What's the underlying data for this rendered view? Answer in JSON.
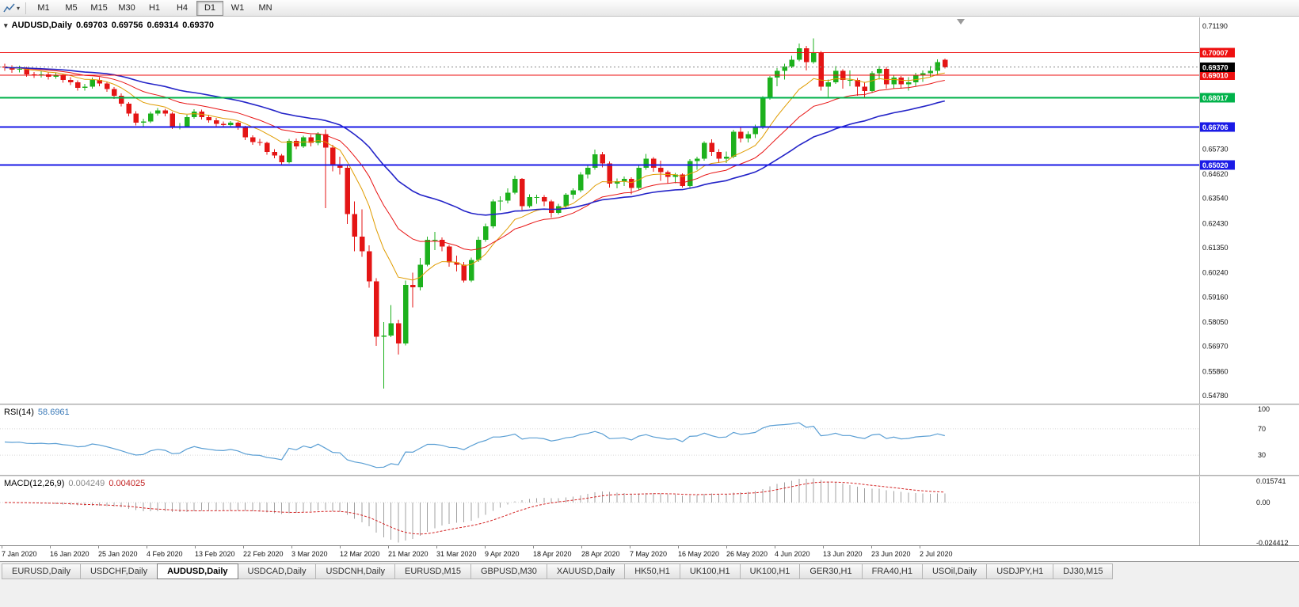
{
  "toolbar": {
    "timeframes": [
      {
        "label": "M1"
      },
      {
        "label": "M5"
      },
      {
        "label": "M15"
      },
      {
        "label": "M30"
      },
      {
        "label": "H1"
      },
      {
        "label": "H4"
      },
      {
        "label": "D1",
        "active": true
      },
      {
        "label": "W1"
      },
      {
        "label": "MN"
      }
    ]
  },
  "chart_header": {
    "collapse_icon": "▾",
    "symbol": "AUDUSD,Daily",
    "open": "0.69703",
    "high": "0.69756",
    "low": "0.69314",
    "close": "0.69370"
  },
  "colors": {
    "bull": "#1db11d",
    "bear": "#e41515",
    "ma_fast": "#e09c00",
    "ma_mid": "#e81414",
    "ma_slow": "#2424c8",
    "rsi_line": "#5b9fd4",
    "macd_hist": "#a0a0a0",
    "macd_signal": "#d42424",
    "hline_red": "#ee0f0f",
    "hline_green": "#00b24a",
    "hline_blue": "#1a1ae6",
    "current_tag": "#000000"
  },
  "main_axis_labels": [
    "0.71190",
    "0.65730",
    "0.64620",
    "0.63540",
    "0.62430",
    "0.61350",
    "0.60240",
    "0.59160",
    "0.58050",
    "0.56970",
    "0.55860",
    "0.54780"
  ],
  "hlines": [
    {
      "value": 0.70007,
      "label": "0.70007",
      "color": "#ee0f0f",
      "width": 1
    },
    {
      "value": 0.6901,
      "label": "0.69010",
      "color": "#ee0f0f",
      "width": 1
    },
    {
      "value": 0.68017,
      "label": "0.68017",
      "color": "#00b24a",
      "width": 2
    },
    {
      "value": 0.66706,
      "label": "0.66706",
      "color": "#1a1ae6",
      "width": 2
    },
    {
      "value": 0.6502,
      "label": "0.65020",
      "color": "#1a1ae6",
      "width": 2
    }
  ],
  "current_price": {
    "value": 0.6937,
    "label": "0.69370"
  },
  "rsi_panel": {
    "label": "RSI(14)",
    "value": "58.6961",
    "levels": [
      "100",
      "70",
      "30"
    ]
  },
  "macd_panel": {
    "label": "MACD(12,26,9)",
    "value1": "0.004249",
    "value2": "0.004025",
    "axis_labels": [
      "0.015741",
      "0.00",
      "-0.024412"
    ]
  },
  "date_labels": [
    "7 Jan 2020",
    "16 Jan 2020",
    "25 Jan 2020",
    "4 Feb 2020",
    "13 Feb 2020",
    "22 Feb 2020",
    "3 Mar 2020",
    "12 Mar 2020",
    "21 Mar 2020",
    "31 Mar 2020",
    "9 Apr 2020",
    "18 Apr 2020",
    "28 Apr 2020",
    "7 May 2020",
    "16 May 2020",
    "26 May 2020",
    "4 Jun 2020",
    "13 Jun 2020",
    "23 Jun 2020",
    "2 Jul 2020"
  ],
  "tabbar": {
    "tabs": [
      {
        "label": "EURUSD,Daily"
      },
      {
        "label": "USDCHF,Daily"
      },
      {
        "label": "AUDUSD,Daily",
        "active": true
      },
      {
        "label": "USDCAD,Daily"
      },
      {
        "label": "USDCNH,Daily"
      },
      {
        "label": "EURUSD,M15"
      },
      {
        "label": "GBPUSD,M30"
      },
      {
        "label": "XAUUSD,Daily"
      },
      {
        "label": "HK50,H1"
      },
      {
        "label": "UK100,H1"
      },
      {
        "label": "UK100,H1"
      },
      {
        "label": "GER30,H1"
      },
      {
        "label": "FRA40,H1"
      },
      {
        "label": "USOil,Daily"
      },
      {
        "label": "USDJPY,H1"
      },
      {
        "label": "DJ30,M15"
      }
    ]
  },
  "chart_data": {
    "type": "candlestick",
    "symbol": "AUDUSD",
    "timeframe": "Daily",
    "title": "AUDUSD,Daily 0.69703 0.69756 0.69314 0.69370",
    "y_range": [
      0.5478,
      0.7119
    ],
    "ohlc_display": [
      0.69703,
      0.69756,
      0.69314,
      0.6937
    ],
    "moving_average_periods": [
      10,
      20,
      40
    ],
    "horizontal_levels": [
      0.70007,
      0.6901,
      0.68017,
      0.66706,
      0.6502
    ],
    "indicators": [
      {
        "name": "RSI(14)",
        "current": 58.6961,
        "levels": [
          100,
          70,
          30
        ]
      },
      {
        "name": "MACD(12,26,9)",
        "current": [
          0.004249,
          0.004025
        ],
        "axis": [
          0.015741,
          0.0,
          -0.024412
        ]
      }
    ],
    "candles": [
      [
        0.694,
        0.6952,
        0.692,
        0.6935
      ],
      [
        0.6935,
        0.6945,
        0.6912,
        0.6925
      ],
      [
        0.6925,
        0.6944,
        0.6913,
        0.693
      ],
      [
        0.693,
        0.6938,
        0.6894,
        0.6905
      ],
      [
        0.6905,
        0.6916,
        0.6888,
        0.69
      ],
      [
        0.69,
        0.6918,
        0.689,
        0.6905
      ],
      [
        0.6905,
        0.6913,
        0.6882,
        0.6895
      ],
      [
        0.6895,
        0.6912,
        0.6885,
        0.69
      ],
      [
        0.69,
        0.6908,
        0.6868,
        0.688
      ],
      [
        0.688,
        0.6892,
        0.6858,
        0.687
      ],
      [
        0.687,
        0.6878,
        0.6832,
        0.6845
      ],
      [
        0.6845,
        0.6862,
        0.6833,
        0.685
      ],
      [
        0.685,
        0.689,
        0.6842,
        0.688
      ],
      [
        0.688,
        0.6892,
        0.6852,
        0.6865
      ],
      [
        0.6865,
        0.6872,
        0.6828,
        0.684
      ],
      [
        0.684,
        0.6848,
        0.6796,
        0.681
      ],
      [
        0.681,
        0.682,
        0.6762,
        0.6775
      ],
      [
        0.6775,
        0.6782,
        0.6718,
        0.673
      ],
      [
        0.673,
        0.6742,
        0.6678,
        0.669
      ],
      [
        0.669,
        0.6708,
        0.667,
        0.6695
      ],
      [
        0.6695,
        0.674,
        0.6688,
        0.673
      ],
      [
        0.673,
        0.6756,
        0.6722,
        0.6745
      ],
      [
        0.6745,
        0.6752,
        0.6718,
        0.673
      ],
      [
        0.673,
        0.6738,
        0.6662,
        0.667
      ],
      [
        0.667,
        0.6688,
        0.666,
        0.6675
      ],
      [
        0.6675,
        0.6725,
        0.6668,
        0.6715
      ],
      [
        0.6715,
        0.675,
        0.6708,
        0.674
      ],
      [
        0.674,
        0.6748,
        0.6705,
        0.6715
      ],
      [
        0.6715,
        0.6726,
        0.669,
        0.67
      ],
      [
        0.67,
        0.6712,
        0.6675,
        0.6685
      ],
      [
        0.6685,
        0.6695,
        0.667,
        0.668
      ],
      [
        0.668,
        0.6698,
        0.6672,
        0.669
      ],
      [
        0.669,
        0.6696,
        0.6658,
        0.667
      ],
      [
        0.667,
        0.6676,
        0.6613,
        0.6625
      ],
      [
        0.6625,
        0.6634,
        0.6592,
        0.6605
      ],
      [
        0.6605,
        0.6618,
        0.6588,
        0.66
      ],
      [
        0.66,
        0.6606,
        0.6548,
        0.656
      ],
      [
        0.656,
        0.6572,
        0.6533,
        0.6545
      ],
      [
        0.6545,
        0.6552,
        0.6503,
        0.6515
      ],
      [
        0.6515,
        0.6618,
        0.651,
        0.661
      ],
      [
        0.661,
        0.662,
        0.6572,
        0.6585
      ],
      [
        0.6585,
        0.6632,
        0.6578,
        0.6625
      ],
      [
        0.6625,
        0.6638,
        0.6585,
        0.66
      ],
      [
        0.66,
        0.6648,
        0.659,
        0.664
      ],
      [
        0.664,
        0.666,
        0.631,
        0.658
      ],
      [
        0.658,
        0.6592,
        0.6475,
        0.65
      ],
      [
        0.65,
        0.654,
        0.646,
        0.649
      ],
      [
        0.649,
        0.6498,
        0.624,
        0.6285
      ],
      [
        0.6285,
        0.634,
        0.612,
        0.6185
      ],
      [
        0.6185,
        0.6305,
        0.6095,
        0.612
      ],
      [
        0.612,
        0.6145,
        0.5958,
        0.5985
      ],
      [
        0.5985,
        0.6,
        0.57,
        0.574
      ],
      [
        0.574,
        0.5805,
        0.551,
        0.5745
      ],
      [
        0.5745,
        0.588,
        0.5738,
        0.58
      ],
      [
        0.58,
        0.5815,
        0.566,
        0.571
      ],
      [
        0.571,
        0.599,
        0.5702,
        0.597
      ],
      [
        0.597,
        0.6025,
        0.587,
        0.596
      ],
      [
        0.596,
        0.609,
        0.5945,
        0.606
      ],
      [
        0.606,
        0.6185,
        0.6052,
        0.617
      ],
      [
        0.617,
        0.6205,
        0.6125,
        0.617
      ],
      [
        0.617,
        0.618,
        0.612,
        0.614
      ],
      [
        0.614,
        0.6148,
        0.605,
        0.607
      ],
      [
        0.607,
        0.61,
        0.603,
        0.606
      ],
      [
        0.606,
        0.6072,
        0.598,
        0.599
      ],
      [
        0.599,
        0.6092,
        0.5982,
        0.608
      ],
      [
        0.608,
        0.6185,
        0.6072,
        0.617
      ],
      [
        0.617,
        0.6242,
        0.6162,
        0.623
      ],
      [
        0.623,
        0.635,
        0.6222,
        0.634
      ],
      [
        0.634,
        0.6363,
        0.63,
        0.6345
      ],
      [
        0.6345,
        0.6398,
        0.6332,
        0.638
      ],
      [
        0.638,
        0.6455,
        0.6372,
        0.644
      ],
      [
        0.644,
        0.6445,
        0.6302,
        0.632
      ],
      [
        0.632,
        0.6372,
        0.6312,
        0.636
      ],
      [
        0.636,
        0.637,
        0.633,
        0.636
      ],
      [
        0.636,
        0.6368,
        0.632,
        0.634
      ],
      [
        0.634,
        0.6348,
        0.6268,
        0.629
      ],
      [
        0.629,
        0.633,
        0.6282,
        0.632
      ],
      [
        0.632,
        0.6378,
        0.6312,
        0.637
      ],
      [
        0.637,
        0.6398,
        0.6352,
        0.639
      ],
      [
        0.639,
        0.647,
        0.6382,
        0.646
      ],
      [
        0.646,
        0.65,
        0.6442,
        0.649
      ],
      [
        0.649,
        0.657,
        0.6482,
        0.655
      ],
      [
        0.655,
        0.656,
        0.6492,
        0.651
      ],
      [
        0.651,
        0.6518,
        0.6402,
        0.642
      ],
      [
        0.642,
        0.6442,
        0.6398,
        0.643
      ],
      [
        0.643,
        0.6452,
        0.641,
        0.644
      ],
      [
        0.644,
        0.6448,
        0.6372,
        0.64
      ],
      [
        0.64,
        0.6498,
        0.6392,
        0.649
      ],
      [
        0.649,
        0.6552,
        0.6482,
        0.653
      ],
      [
        0.653,
        0.6538,
        0.6472,
        0.649
      ],
      [
        0.649,
        0.6522,
        0.6432,
        0.647
      ],
      [
        0.647,
        0.6478,
        0.642,
        0.645
      ],
      [
        0.645,
        0.6468,
        0.6422,
        0.646
      ],
      [
        0.646,
        0.6466,
        0.6402,
        0.641
      ],
      [
        0.641,
        0.6528,
        0.6402,
        0.652
      ],
      [
        0.652,
        0.654,
        0.6482,
        0.653
      ],
      [
        0.653,
        0.6608,
        0.6522,
        0.66
      ],
      [
        0.66,
        0.6616,
        0.6542,
        0.656
      ],
      [
        0.656,
        0.6572,
        0.6512,
        0.653
      ],
      [
        0.653,
        0.6562,
        0.6512,
        0.654
      ],
      [
        0.654,
        0.6658,
        0.6532,
        0.665
      ],
      [
        0.665,
        0.6668,
        0.6602,
        0.662
      ],
      [
        0.662,
        0.6652,
        0.6602,
        0.664
      ],
      [
        0.664,
        0.6682,
        0.6622,
        0.667
      ],
      [
        0.667,
        0.6808,
        0.6662,
        0.68
      ],
      [
        0.68,
        0.6898,
        0.6792,
        0.689
      ],
      [
        0.689,
        0.6932,
        0.6852,
        0.692
      ],
      [
        0.692,
        0.6952,
        0.6882,
        0.694
      ],
      [
        0.694,
        0.6988,
        0.6932,
        0.697
      ],
      [
        0.697,
        0.7042,
        0.6962,
        0.702
      ],
      [
        0.702,
        0.7032,
        0.6922,
        0.696
      ],
      [
        0.696,
        0.7064,
        0.6952,
        0.7
      ],
      [
        0.7,
        0.7008,
        0.6832,
        0.685
      ],
      [
        0.685,
        0.6882,
        0.68,
        0.687
      ],
      [
        0.687,
        0.6942,
        0.6862,
        0.692
      ],
      [
        0.692,
        0.6928,
        0.6842,
        0.688
      ],
      [
        0.688,
        0.6922,
        0.6852,
        0.688
      ],
      [
        0.688,
        0.6888,
        0.681,
        0.685
      ],
      [
        0.685,
        0.6872,
        0.6802,
        0.683
      ],
      [
        0.683,
        0.6918,
        0.6822,
        0.691
      ],
      [
        0.691,
        0.6942,
        0.6882,
        0.693
      ],
      [
        0.693,
        0.6938,
        0.6842,
        0.686
      ],
      [
        0.686,
        0.6902,
        0.6842,
        0.689
      ],
      [
        0.689,
        0.6898,
        0.6842,
        0.686
      ],
      [
        0.686,
        0.6892,
        0.6832,
        0.687
      ],
      [
        0.687,
        0.6912,
        0.6852,
        0.69
      ],
      [
        0.69,
        0.6922,
        0.6872,
        0.691
      ],
      [
        0.691,
        0.6942,
        0.6892,
        0.692
      ],
      [
        0.692,
        0.6972,
        0.6902,
        0.696
      ],
      [
        0.69703,
        0.69756,
        0.69314,
        0.6937
      ]
    ]
  }
}
